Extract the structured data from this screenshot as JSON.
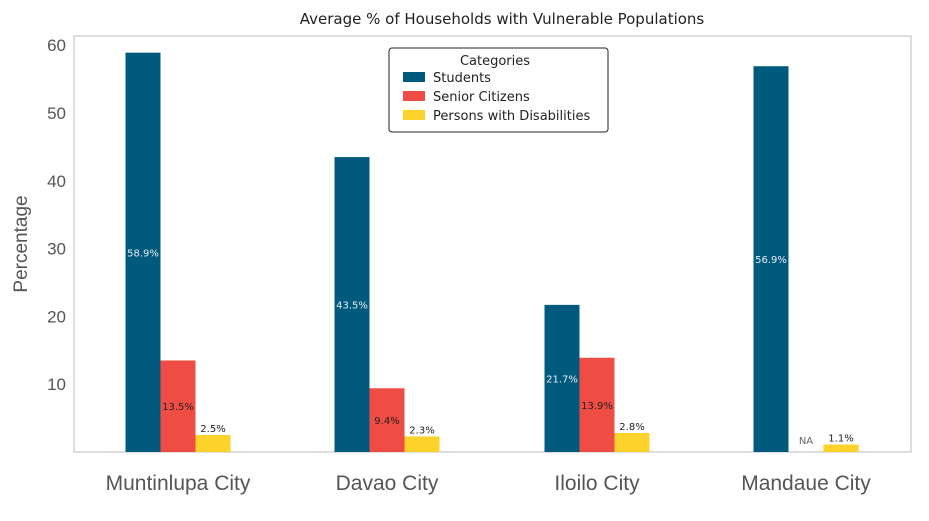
{
  "chart_data": {
    "type": "bar",
    "title": "Average % of Households with Vulnerable Populations",
    "xlabel": "",
    "ylabel": "Percentage",
    "ylim": [
      0,
      62
    ],
    "yticks": [
      10,
      20,
      30,
      40,
      50,
      60
    ],
    "grid": false,
    "legend": {
      "title": "Categories",
      "placement": "top-center"
    },
    "categories": [
      "Muntinlupa City",
      "Davao City",
      "Iloilo City",
      "Mandaue City"
    ],
    "series": [
      {
        "name": "Students",
        "color": "#005a7d",
        "label_color": "#e6eef2",
        "values": [
          58.9,
          43.5,
          21.7,
          56.9
        ],
        "labels": [
          "58.9%",
          "43.5%",
          "21.7%",
          "56.9%"
        ]
      },
      {
        "name": "Senior Citizens",
        "color": "#ef4c43",
        "label_color": "#222222",
        "values": [
          13.5,
          9.4,
          13.9,
          null
        ],
        "labels": [
          "13.5%",
          "9.4%",
          "13.9%",
          "NA"
        ]
      },
      {
        "name": "Persons with Disabilities",
        "color": "#fdd22a",
        "label_color": "#222222",
        "values": [
          2.5,
          2.3,
          2.8,
          1.1
        ],
        "labels": [
          "2.5%",
          "2.3%",
          "2.8%",
          "1.1%"
        ]
      }
    ]
  }
}
